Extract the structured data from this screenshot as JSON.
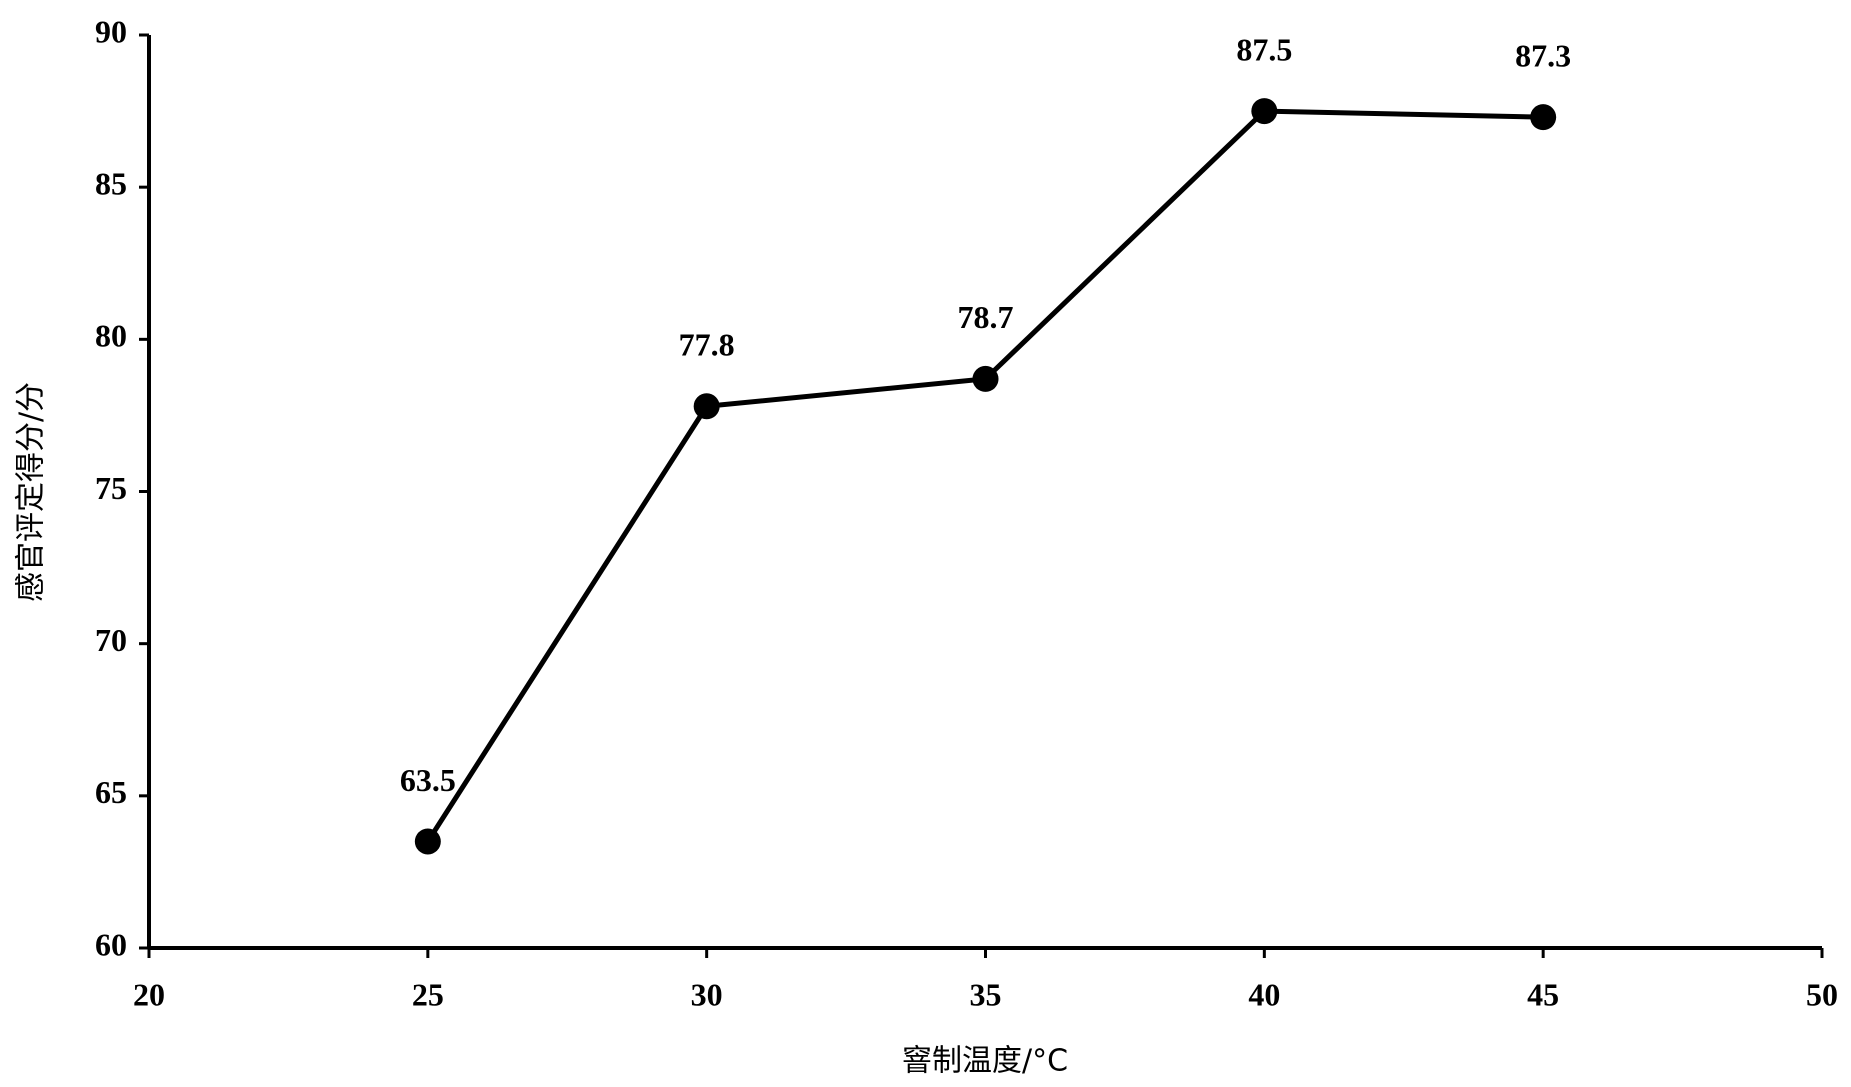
{
  "chart_data": {
    "type": "line",
    "x_label": "窨制温度/°C",
    "y_label": "感官评定得分/分",
    "x": [
      25,
      30,
      35,
      40,
      45
    ],
    "series": [
      {
        "color": "#000000",
        "values": [
          63.5,
          77.8,
          78.7,
          87.5,
          87.3
        ]
      }
    ],
    "xlim": [
      20,
      50
    ],
    "xticks": [
      20,
      25,
      30,
      35,
      40,
      45,
      50
    ],
    "ylim": [
      60,
      90
    ],
    "yticks": [
      60,
      65,
      70,
      75,
      80,
      85,
      90
    ],
    "grid": false
  }
}
